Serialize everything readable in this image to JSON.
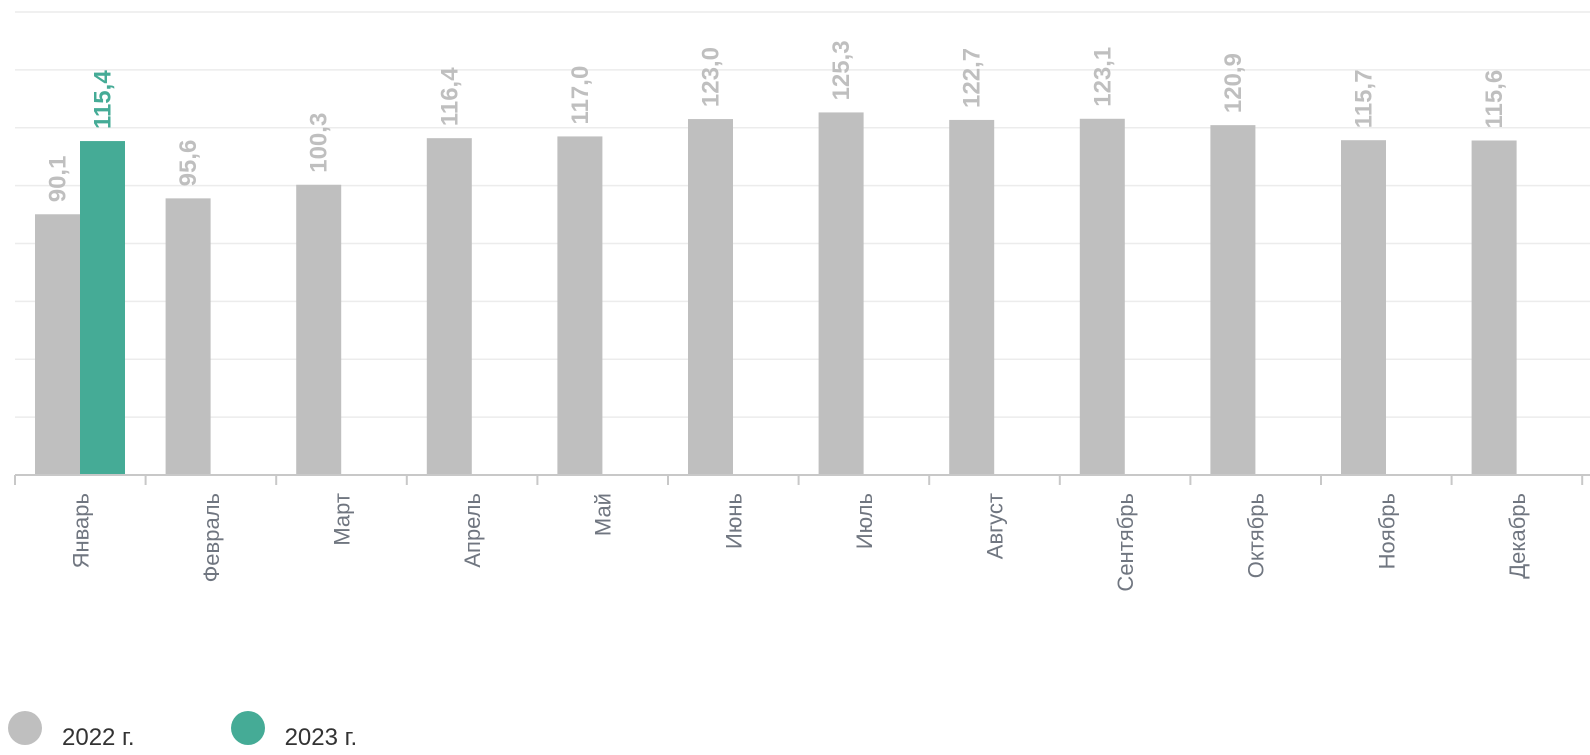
{
  "chart_data": {
    "type": "bar",
    "categories": [
      "Январь",
      "Февраль",
      "Март",
      "Апрель",
      "Май",
      "Июнь",
      "Июль",
      "Август",
      "Сентябрь",
      "Октябрь",
      "Ноябрь",
      "Декабрь"
    ],
    "series": [
      {
        "name": "2022 г.",
        "color": "#bfbfbf",
        "values": [
          90.1,
          95.6,
          100.3,
          116.4,
          117.0,
          123.0,
          125.3,
          122.7,
          123.1,
          120.9,
          115.7,
          115.6
        ],
        "value_labels": [
          "90,1",
          "95,6",
          "100,3",
          "116,4",
          "117,0",
          "123,0",
          "125,3",
          "122,7",
          "123,1",
          "120,9",
          "115,7",
          "115,6"
        ]
      },
      {
        "name": "2023 г.",
        "color": "#45ab96",
        "values": [
          115.4,
          null,
          null,
          null,
          null,
          null,
          null,
          null,
          null,
          null,
          null,
          null
        ],
        "value_labels": [
          "115,4",
          "",
          "",
          "",
          "",
          "",
          "",
          "",
          "",
          "",
          "",
          ""
        ]
      }
    ],
    "ylim": [
      0,
      160
    ],
    "grid": true,
    "legend_position": "bottom-left",
    "title": "",
    "xlabel": "",
    "ylabel": ""
  },
  "legend": {
    "items": [
      {
        "label": "2022 г.",
        "color": "#bfbfbf"
      },
      {
        "label": "2023 г.",
        "color": "#45ab96"
      }
    ]
  }
}
